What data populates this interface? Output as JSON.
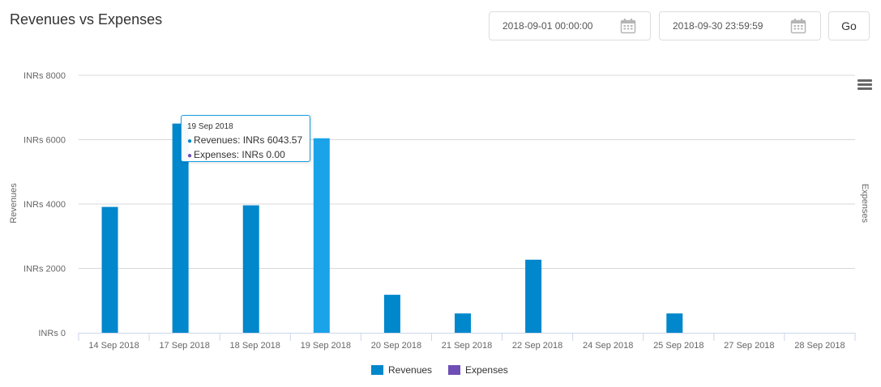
{
  "title": "Revenues vs Expenses",
  "filters": {
    "start_date": "2018-09-01 00:00:00",
    "end_date": "2018-09-30 23:59:59",
    "go_label": "Go"
  },
  "chart_data": {
    "type": "bar",
    "categories": [
      "14 Sep 2018",
      "17 Sep 2018",
      "18 Sep 2018",
      "19 Sep 2018",
      "20 Sep 2018",
      "21 Sep 2018",
      "22 Sep 2018",
      "24 Sep 2018",
      "25 Sep 2018",
      "27 Sep 2018",
      "28 Sep 2018"
    ],
    "series": [
      {
        "name": "Revenues",
        "color": "#0087cc",
        "values": [
          3910,
          6500,
          3960,
          6043.57,
          1180,
          600,
          2270,
          0,
          600,
          0,
          0
        ]
      },
      {
        "name": "Expenses",
        "color": "#6f4fb5",
        "values": [
          0,
          0,
          0,
          0,
          0,
          0,
          0,
          0,
          0,
          0,
          0
        ]
      }
    ],
    "ylabel_left": "Revenues",
    "ylabel_right": "Expenses",
    "ylim": [
      0,
      8000
    ],
    "yticks": [
      0,
      2000,
      4000,
      6000,
      8000
    ],
    "ytick_labels": [
      "INRs 0",
      "INRs 2000",
      "INRs 4000",
      "INRs 6000",
      "INRs 8000"
    ],
    "grid": true,
    "legend_position": "bottom-center",
    "highlight_color": "#1aa3e8",
    "tooltip": {
      "category_index": 3,
      "date": "19 Sep 2018",
      "rows": [
        "Revenues: INRs 6043.57",
        "Expenses: INRs 0.00"
      ]
    }
  }
}
